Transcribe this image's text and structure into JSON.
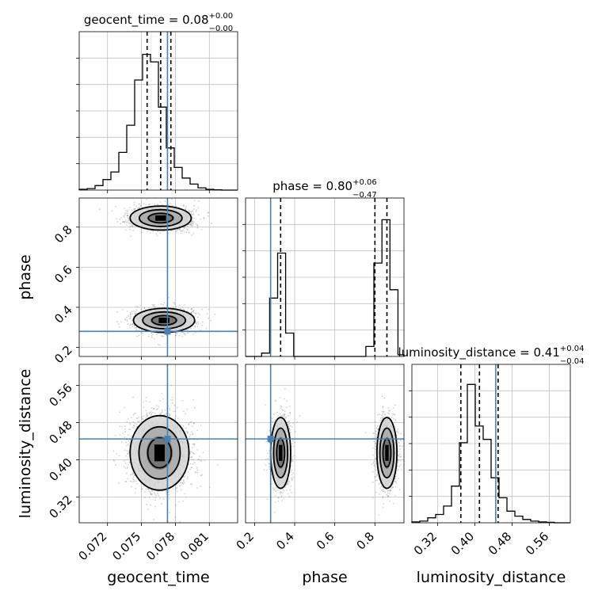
{
  "chart_data": {
    "type": "corner",
    "parameters": [
      {
        "name": "geocent_time",
        "axis_label": "geocent_time",
        "range": [
          0.0695,
          0.0835
        ],
        "ticks": [
          0.072,
          0.075,
          0.078,
          0.081
        ],
        "tick_labels": [
          "0.072",
          "0.075",
          "0.078",
          "0.081"
        ],
        "title": {
          "prefix": "geocent_time = 0.08",
          "upper": "+0.00",
          "lower": "−0.00"
        },
        "quantiles": [
          0.0755,
          0.0767,
          0.0776
        ],
        "truth": 0.0773,
        "hist_edges": [
          0.0695,
          0.0702,
          0.0709,
          0.0716,
          0.0723,
          0.073,
          0.0737,
          0.0744,
          0.0751,
          0.0758,
          0.0765,
          0.0772,
          0.0779,
          0.0786,
          0.0793,
          0.08,
          0.0807,
          0.0814,
          0.0821,
          0.0828,
          0.0835
        ],
        "hist_values": [
          0.005,
          0.01,
          0.03,
          0.07,
          0.12,
          0.25,
          0.43,
          0.73,
          0.9,
          0.85,
          0.55,
          0.28,
          0.15,
          0.08,
          0.04,
          0.015,
          0.005,
          0.002,
          0,
          0
        ],
        "hist_max": 1.05
      },
      {
        "name": "phase",
        "axis_label": "phase",
        "range": [
          0.155,
          0.945
        ],
        "ticks": [
          0.2,
          0.4,
          0.6,
          0.8
        ],
        "tick_labels": [
          "0.2",
          "0.4",
          "0.6",
          "0.8"
        ],
        "title": {
          "prefix": "phase = 0.80",
          "upper": "+0.06",
          "lower": "−0.47"
        },
        "quantiles": [
          0.33,
          0.8,
          0.86
        ],
        "truth": 0.28,
        "hist_edges": [
          0.155,
          0.195,
          0.235,
          0.275,
          0.315,
          0.355,
          0.395,
          0.435,
          0.475,
          0.515,
          0.555,
          0.595,
          0.635,
          0.675,
          0.715,
          0.755,
          0.795,
          0.835,
          0.875,
          0.915,
          0.945
        ],
        "hist_values": [
          0,
          0,
          0.02,
          0.35,
          0.62,
          0.14,
          0,
          0,
          0,
          0,
          0,
          0,
          0,
          0,
          0,
          0.06,
          0.56,
          0.82,
          0.4,
          0.01
        ],
        "hist_max": 0.95
      },
      {
        "name": "luminosity_distance",
        "axis_label": "luminosity_distance",
        "range": [
          0.265,
          0.605
        ],
        "ticks": [
          0.32,
          0.4,
          0.48,
          0.56
        ],
        "tick_labels": [
          "0.32",
          "0.40",
          "0.48",
          "0.56"
        ],
        "title": {
          "prefix": "luminosity_distance = 0.41",
          "upper": "+0.04",
          "lower": "−0.04"
        },
        "quantiles": [
          0.37,
          0.41,
          0.45
        ],
        "truth": 0.445,
        "hist_edges": [
          0.265,
          0.282,
          0.299,
          0.316,
          0.333,
          0.35,
          0.367,
          0.384,
          0.401,
          0.418,
          0.435,
          0.452,
          0.469,
          0.486,
          0.503,
          0.52,
          0.537,
          0.554,
          0.571,
          0.588,
          0.605
        ],
        "hist_values": [
          0.005,
          0.01,
          0.03,
          0.05,
          0.1,
          0.22,
          0.48,
          0.83,
          0.58,
          0.5,
          0.27,
          0.15,
          0.07,
          0.04,
          0.02,
          0.01,
          0.005,
          0.003,
          0,
          0
        ],
        "hist_max": 0.95
      }
    ],
    "clusters": [
      {
        "pair": "phase|geocent_time",
        "mean": [
          0.0767,
          0.845
        ],
        "sd": [
          0.00135,
          0.03
        ],
        "n": 1500
      },
      {
        "pair": "phase|geocent_time",
        "mean": [
          0.077,
          0.335
        ],
        "sd": [
          0.00135,
          0.03
        ],
        "n": 1300
      },
      {
        "pair": "luminosity_distance|geocent_time",
        "mean": [
          0.0766,
          0.415
        ],
        "sd": [
          0.0013,
          0.04
        ],
        "n": 2600
      },
      {
        "pair": "luminosity_distance|phase",
        "mean": [
          0.33,
          0.415
        ],
        "sd": [
          0.025,
          0.038
        ],
        "n": 1300
      },
      {
        "pair": "luminosity_distance|phase",
        "mean": [
          0.86,
          0.415
        ],
        "sd": [
          0.025,
          0.038
        ],
        "n": 1300
      }
    ],
    "grid": true,
    "colors": {
      "truth": "#4682b4",
      "hist": "#000000",
      "samples": "#7a7a7a",
      "grid": "#c0c0c0"
    }
  }
}
